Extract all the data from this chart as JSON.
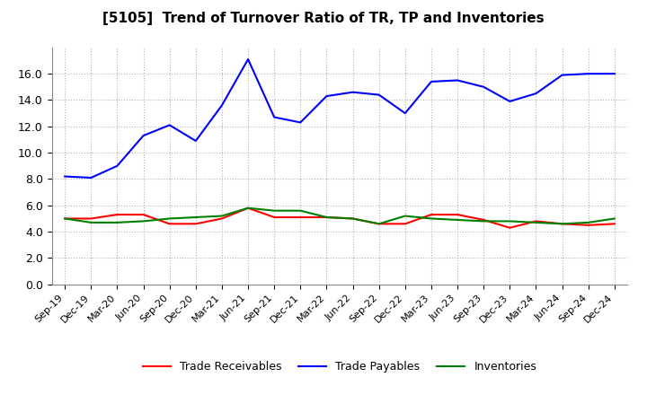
{
  "title": "[5105]  Trend of Turnover Ratio of TR, TP and Inventories",
  "x_labels": [
    "Sep-19",
    "Dec-19",
    "Mar-20",
    "Jun-20",
    "Sep-20",
    "Dec-20",
    "Mar-21",
    "Jun-21",
    "Sep-21",
    "Dec-21",
    "Mar-22",
    "Jun-22",
    "Sep-22",
    "Dec-22",
    "Mar-23",
    "Jun-23",
    "Sep-23",
    "Dec-23",
    "Mar-24",
    "Jun-24",
    "Sep-24",
    "Dec-24"
  ],
  "trade_receivables": [
    5.0,
    5.0,
    5.3,
    5.3,
    4.6,
    4.6,
    5.0,
    5.8,
    5.1,
    5.1,
    5.1,
    5.0,
    4.6,
    4.6,
    5.3,
    5.3,
    4.9,
    4.3,
    4.8,
    4.6,
    4.5,
    4.6
  ],
  "trade_payables": [
    8.2,
    8.1,
    9.0,
    11.3,
    12.1,
    10.9,
    13.6,
    17.1,
    12.7,
    12.3,
    14.3,
    14.6,
    14.4,
    13.0,
    15.4,
    15.5,
    15.0,
    13.9,
    14.5,
    15.9,
    16.0,
    16.0
  ],
  "inventories": [
    5.0,
    4.7,
    4.7,
    4.8,
    5.0,
    5.1,
    5.2,
    5.8,
    5.6,
    5.6,
    5.1,
    5.0,
    4.6,
    5.2,
    5.0,
    4.9,
    4.8,
    4.8,
    4.7,
    4.6,
    4.7,
    5.0
  ],
  "ylim": [
    0.0,
    18.0
  ],
  "yticks": [
    0.0,
    2.0,
    4.0,
    6.0,
    8.0,
    10.0,
    12.0,
    14.0,
    16.0
  ],
  "line_colors": {
    "trade_receivables": "#ff0000",
    "trade_payables": "#0000ff",
    "inventories": "#008000"
  },
  "background_color": "#ffffff",
  "grid_color": "#aaaaaa",
  "legend_labels": [
    "Trade Receivables",
    "Trade Payables",
    "Inventories"
  ],
  "title_fontsize": 11,
  "tick_fontsize": 8,
  "legend_fontsize": 9
}
